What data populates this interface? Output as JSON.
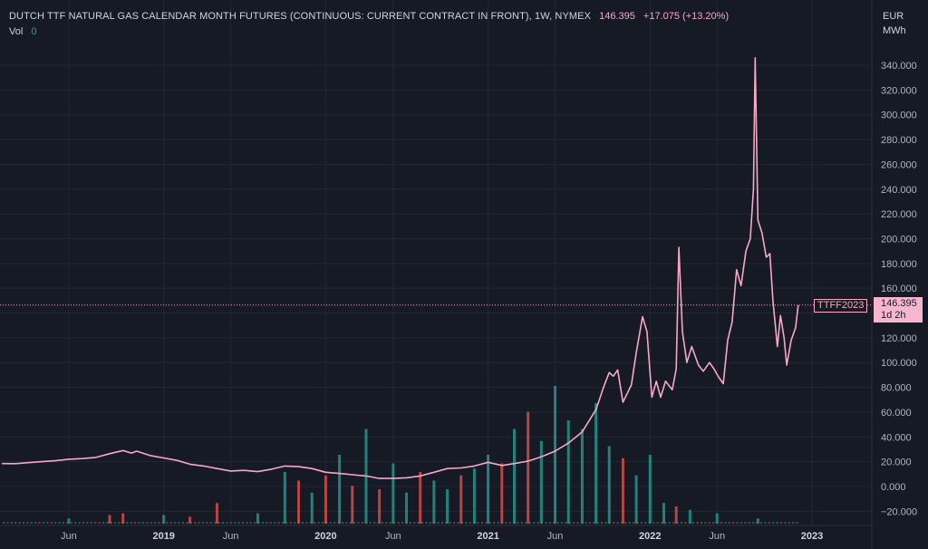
{
  "header": {
    "title": "DUTCH TTF NATURAL GAS CALENDAR MONTH FUTURES (CONTINUOUS: CURRENT CONTRACT IN FRONT), 1W, NYMEX",
    "price": "146.395",
    "change": "+17.075 (+13.20%)",
    "volume_label": "Vol",
    "volume_value": "0"
  },
  "units": {
    "currency": "EUR",
    "per": "MWh"
  },
  "price_tag": {
    "symbol": "TTFF2023",
    "price": "146.395",
    "countdown": "1d 2h"
  },
  "colors": {
    "background": "#161a25",
    "line": "#f7a8c7",
    "volume_up": "#26a69a",
    "volume_down": "#ef5350",
    "grid": "#232733"
  },
  "chart_data": {
    "type": "line",
    "title": "DUTCH TTF NATURAL GAS CALENDAR MONTH FUTURES (CONTINUOUS: CURRENT CONTRACT IN FRONT), 1W, NYMEX",
    "ylabel": "EUR MWh",
    "ylim": [
      -30,
      360
    ],
    "y_ticks": [
      -20,
      0,
      20,
      40,
      60,
      80,
      100,
      120,
      140,
      160,
      180,
      200,
      220,
      240,
      260,
      280,
      300,
      320,
      340
    ],
    "y_tick_labels": [
      "−20.000",
      "0.000",
      "20.000",
      "40.000",
      "60.000",
      "80.000",
      "100.000",
      "120.000",
      "140.000",
      "160.000",
      "180.000",
      "200.000",
      "220.000",
      "240.000",
      "260.000",
      "280.000",
      "300.000",
      "320.000",
      "340.000"
    ],
    "x_tick_labels": [
      {
        "label": "Jun",
        "date": "2018-06"
      },
      {
        "label": "2019",
        "date": "2019-01"
      },
      {
        "label": "Jun",
        "date": "2019-06"
      },
      {
        "label": "2020",
        "date": "2020-01"
      },
      {
        "label": "Jun",
        "date": "2020-06"
      },
      {
        "label": "2021",
        "date": "2021-01"
      },
      {
        "label": "Jun",
        "date": "2021-06"
      },
      {
        "label": "2022",
        "date": "2022-01"
      },
      {
        "label": "Jun",
        "date": "2022-06"
      },
      {
        "label": "2023",
        "date": "2023-01"
      }
    ],
    "x_range": [
      "2018-01",
      "2023-06"
    ],
    "grid": true,
    "series": [
      {
        "values": [
          [
            "2018-01",
            18.5
          ],
          [
            "2018-02",
            18.4
          ],
          [
            "2018-03",
            19.2
          ],
          [
            "2018-04",
            20.0
          ],
          [
            "2018-05",
            20.8
          ],
          [
            "2018-06",
            22.0
          ],
          [
            "2018-07",
            22.5
          ],
          [
            "2018-08",
            23.5
          ],
          [
            "2018-09",
            26.5
          ],
          [
            "2018-10",
            29.0
          ],
          [
            "2018-10-20",
            27.0
          ],
          [
            "2018-11",
            28.5
          ],
          [
            "2018-12",
            25.0
          ],
          [
            "2019-01",
            23.0
          ],
          [
            "2019-02",
            21.0
          ],
          [
            "2019-03",
            18.0
          ],
          [
            "2019-04",
            16.5
          ],
          [
            "2019-05",
            14.5
          ],
          [
            "2019-06",
            12.5
          ],
          [
            "2019-07",
            13.0
          ],
          [
            "2019-08",
            12.0
          ],
          [
            "2019-09",
            14.0
          ],
          [
            "2019-10",
            16.5
          ],
          [
            "2019-11",
            16.0
          ],
          [
            "2019-12",
            14.5
          ],
          [
            "2020-01",
            11.5
          ],
          [
            "2020-02",
            10.5
          ],
          [
            "2020-03",
            9.5
          ],
          [
            "2020-04",
            8.5
          ],
          [
            "2020-05",
            6.5
          ],
          [
            "2020-06",
            6.5
          ],
          [
            "2020-07",
            7.0
          ],
          [
            "2020-08",
            8.5
          ],
          [
            "2020-09",
            11.5
          ],
          [
            "2020-10",
            14.5
          ],
          [
            "2020-11",
            15.0
          ],
          [
            "2020-12",
            16.5
          ],
          [
            "2021-01",
            19.5
          ],
          [
            "2021-02",
            17.0
          ],
          [
            "2021-03",
            18.5
          ],
          [
            "2021-04",
            20.5
          ],
          [
            "2021-05",
            24.0
          ],
          [
            "2021-06",
            28.5
          ],
          [
            "2021-07",
            35.0
          ],
          [
            "2021-08",
            44.0
          ],
          [
            "2021-09",
            62.0
          ],
          [
            "2021-09-20",
            82.0
          ],
          [
            "2021-10",
            92.0
          ],
          [
            "2021-10-10",
            89.0
          ],
          [
            "2021-10-20",
            94.0
          ],
          [
            "2021-11",
            68.0
          ],
          [
            "2021-11-20",
            82.0
          ],
          [
            "2021-12",
            108.0
          ],
          [
            "2021-12-15",
            137.0
          ],
          [
            "2021-12-25",
            125.0
          ],
          [
            "2022-01-05",
            72.0
          ],
          [
            "2022-01-15",
            85.0
          ],
          [
            "2022-01-25",
            72.0
          ],
          [
            "2022-02-05",
            85.0
          ],
          [
            "2022-02-20",
            78.0
          ],
          [
            "2022-03-01",
            95.0
          ],
          [
            "2022-03-07",
            193.0
          ],
          [
            "2022-03-15",
            125.0
          ],
          [
            "2022-03-25",
            100.0
          ],
          [
            "2022-04-05",
            113.0
          ],
          [
            "2022-04-20",
            98.0
          ],
          [
            "2022-05-01",
            93.0
          ],
          [
            "2022-05-15",
            100.0
          ],
          [
            "2022-05-25",
            95.0
          ],
          [
            "2022-06-05",
            88.0
          ],
          [
            "2022-06-15",
            83.0
          ],
          [
            "2022-06-25",
            118.0
          ],
          [
            "2022-07-05",
            133.0
          ],
          [
            "2022-07-15",
            175.0
          ],
          [
            "2022-07-25",
            162.0
          ],
          [
            "2022-08-05",
            190.0
          ],
          [
            "2022-08-15",
            200.0
          ],
          [
            "2022-08-22",
            240.0
          ],
          [
            "2022-08-26",
            346.0
          ],
          [
            "2022-09-01",
            215.0
          ],
          [
            "2022-09-10",
            205.0
          ],
          [
            "2022-09-20",
            185.0
          ],
          [
            "2022-09-28",
            188.0
          ],
          [
            "2022-10-05",
            150.0
          ],
          [
            "2022-10-15",
            113.0
          ],
          [
            "2022-10-22",
            138.0
          ],
          [
            "2022-10-30",
            120.0
          ],
          [
            "2022-11-05",
            98.0
          ],
          [
            "2022-11-15",
            118.0
          ],
          [
            "2022-11-25",
            128.0
          ],
          [
            "2022-12-01",
            146.4
          ]
        ]
      }
    ],
    "volume": {
      "description_note": "",
      "bars": [
        [
          "2018-06",
          3,
          "up"
        ],
        [
          "2018-09",
          5,
          "down"
        ],
        [
          "2018-10",
          6,
          "down"
        ],
        [
          "2019-01",
          5,
          "up"
        ],
        [
          "2019-03",
          4,
          "down"
        ],
        [
          "2019-05",
          12,
          "down"
        ],
        [
          "2019-08",
          6,
          "up"
        ],
        [
          "2019-10",
          30,
          "up"
        ],
        [
          "2019-11",
          25,
          "down"
        ],
        [
          "2019-12",
          18,
          "up"
        ],
        [
          "2020-01",
          28,
          "down"
        ],
        [
          "2020-02",
          40,
          "up"
        ],
        [
          "2020-03",
          22,
          "down"
        ],
        [
          "2020-04",
          55,
          "up"
        ],
        [
          "2020-05",
          20,
          "down"
        ],
        [
          "2020-06",
          35,
          "up"
        ],
        [
          "2020-07",
          18,
          "up"
        ],
        [
          "2020-08",
          30,
          "down"
        ],
        [
          "2020-09",
          25,
          "up"
        ],
        [
          "2020-10",
          20,
          "up"
        ],
        [
          "2020-11",
          28,
          "down"
        ],
        [
          "2020-12",
          32,
          "up"
        ],
        [
          "2021-01",
          40,
          "up"
        ],
        [
          "2021-02",
          35,
          "down"
        ],
        [
          "2021-03",
          55,
          "up"
        ],
        [
          "2021-04",
          65,
          "down"
        ],
        [
          "2021-05",
          48,
          "up"
        ],
        [
          "2021-06",
          80,
          "up"
        ],
        [
          "2021-07",
          60,
          "up"
        ],
        [
          "2021-08",
          55,
          "up"
        ],
        [
          "2021-09",
          70,
          "up"
        ],
        [
          "2021-10",
          45,
          "up"
        ],
        [
          "2021-11",
          38,
          "down"
        ],
        [
          "2021-12",
          28,
          "up"
        ],
        [
          "2022-01",
          40,
          "up"
        ],
        [
          "2022-02",
          12,
          "up"
        ],
        [
          "2022-03",
          10,
          "down"
        ],
        [
          "2022-04",
          8,
          "up"
        ],
        [
          "2022-06",
          6,
          "up"
        ],
        [
          "2022-09",
          3,
          "up"
        ]
      ]
    }
  }
}
